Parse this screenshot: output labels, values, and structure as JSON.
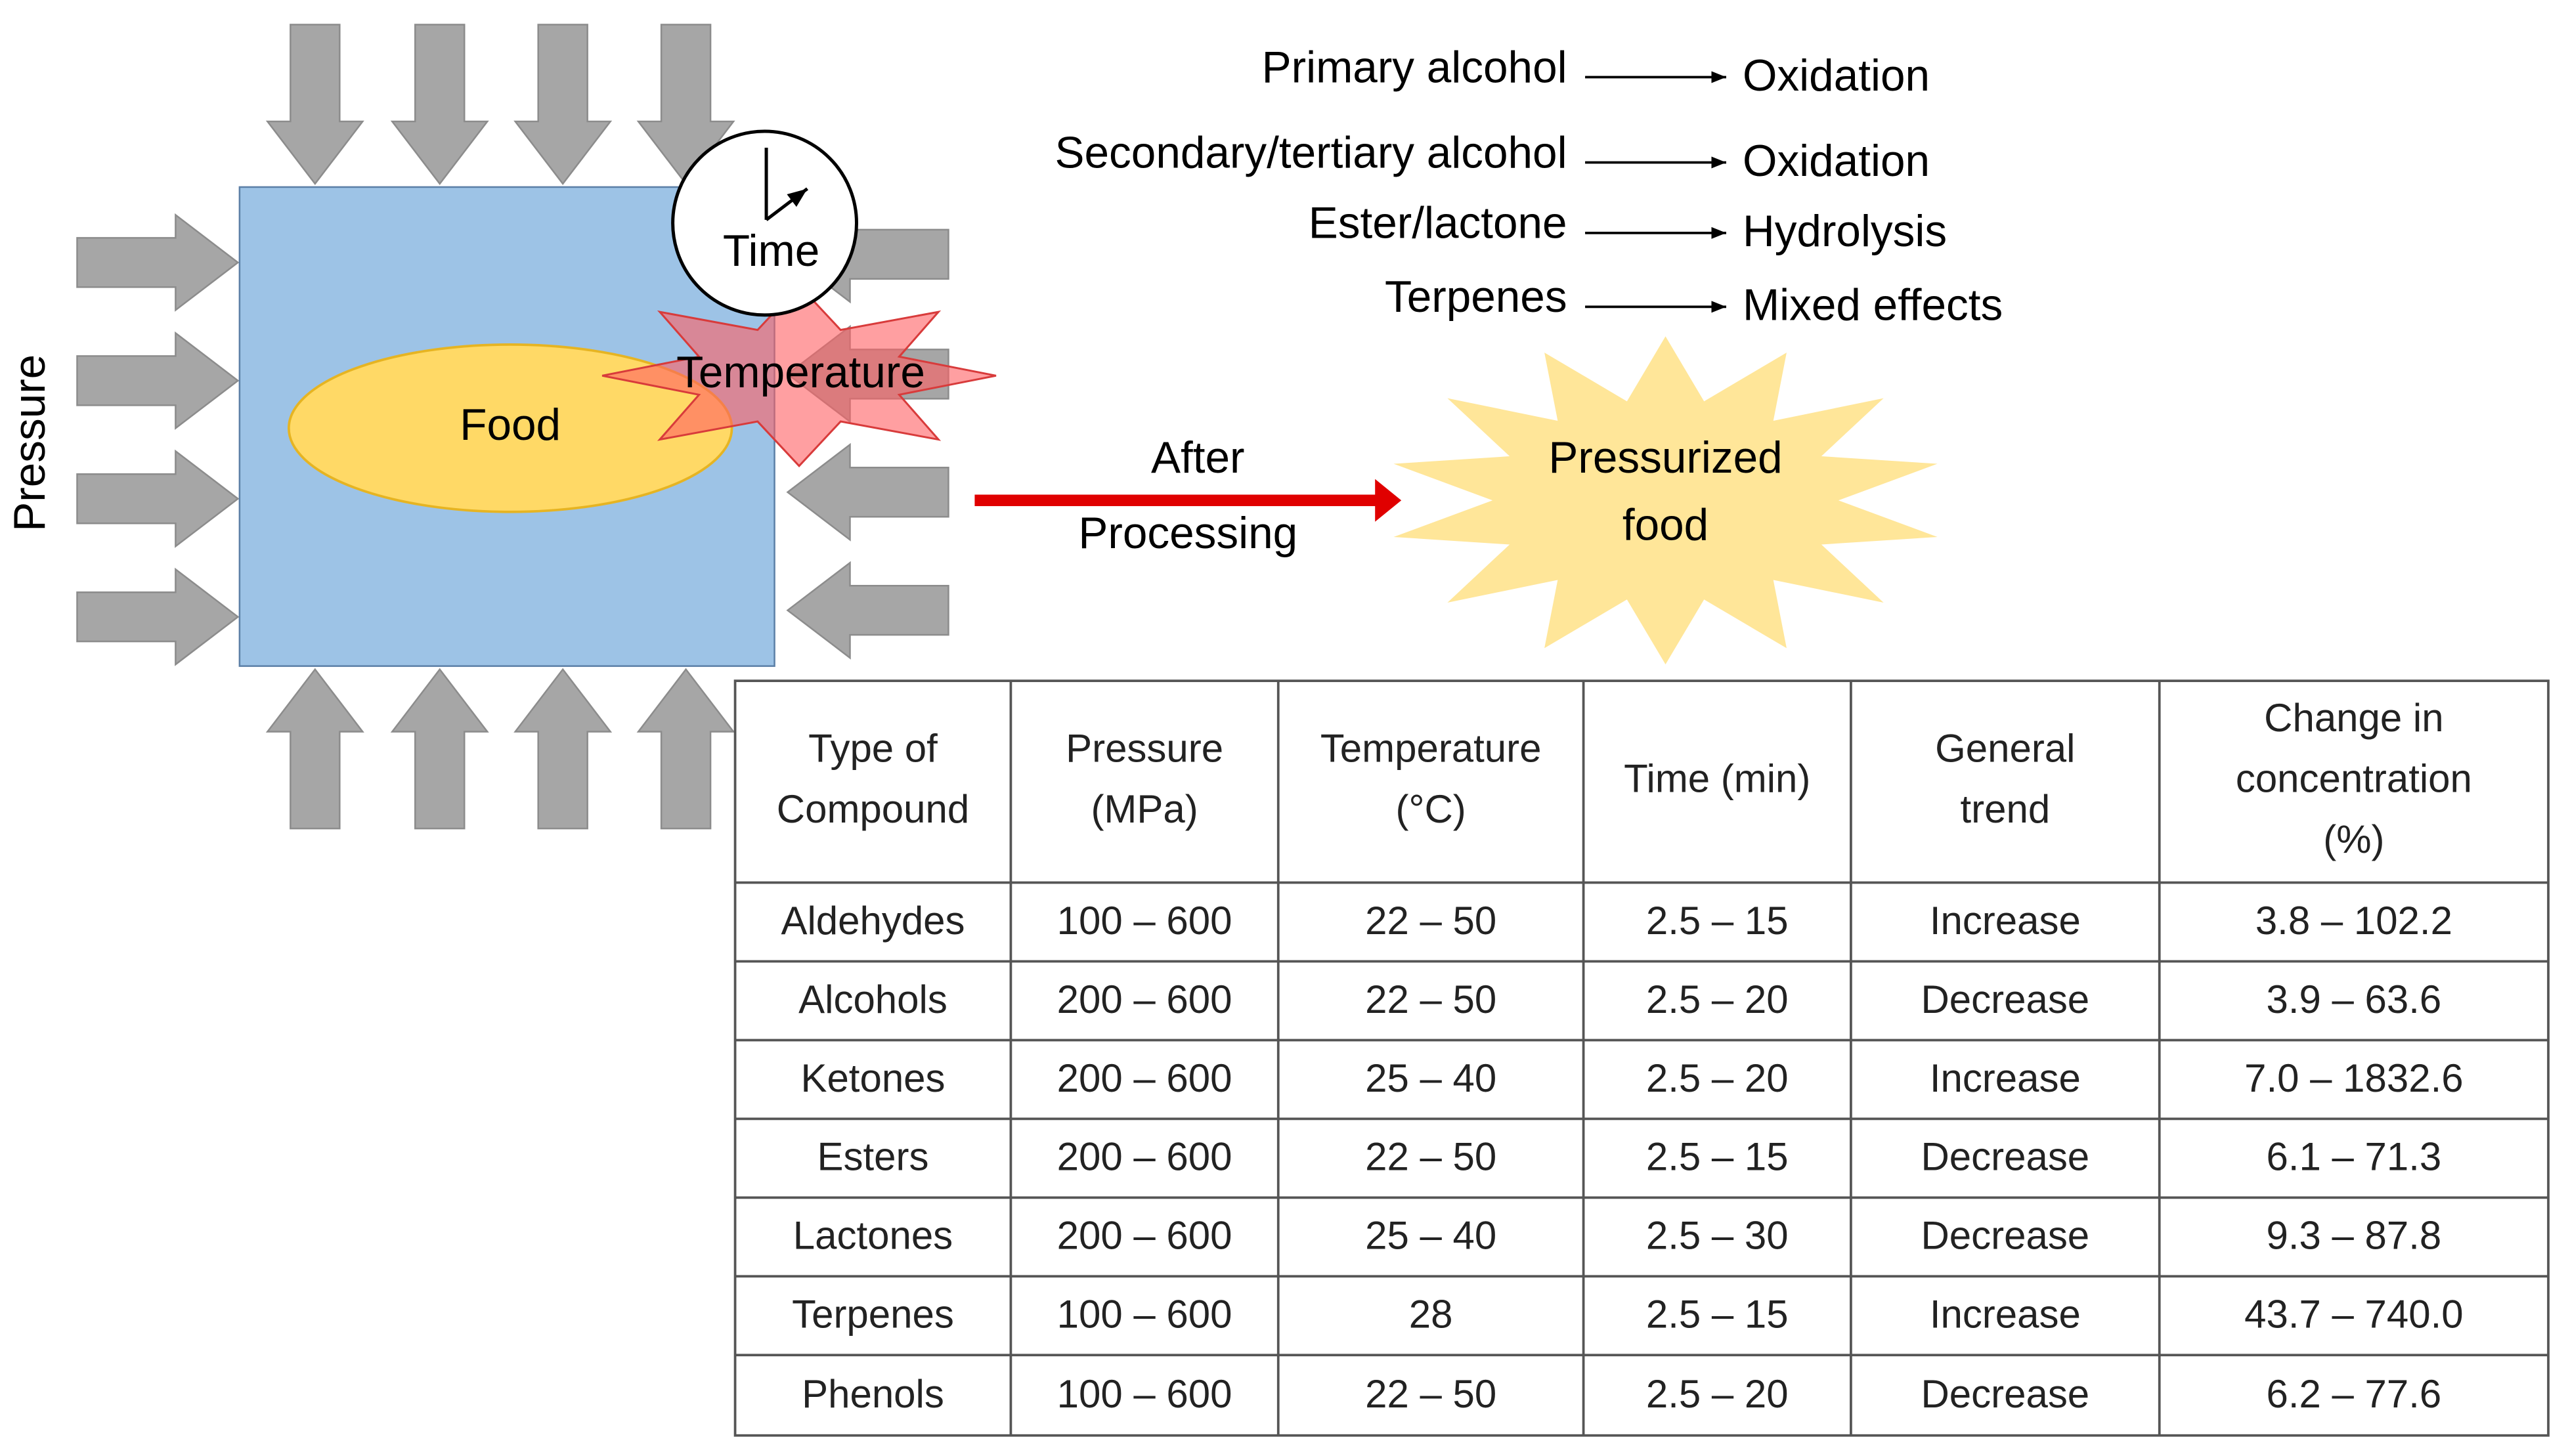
{
  "diagram": {
    "pressure_label": "Pressure",
    "food_label": "Food",
    "temperature_label": "Temperature",
    "time_label": "Time",
    "after_label": [
      "After",
      "Processing"
    ],
    "result_label": [
      "Pressurized",
      "food"
    ],
    "reactions": [
      {
        "compound": "Primary alcohol",
        "effect": "Oxidation"
      },
      {
        "compound": "Secondary/tertiary alcohol",
        "effect": "Oxidation"
      },
      {
        "compound": "Ester/lactone",
        "effect": "Hydrolysis"
      },
      {
        "compound": "Terpenes",
        "effect": "Mixed effects"
      }
    ]
  },
  "table": {
    "header": [
      [
        "Type of",
        "Compound"
      ],
      [
        "Pressure",
        "(MPa)"
      ],
      [
        "Temperature",
        "(°C)"
      ],
      [
        "Time (min)"
      ],
      [
        "General",
        "trend"
      ],
      [
        "Change in",
        "concentration",
        "(%)"
      ]
    ],
    "rows": [
      [
        "Aldehydes",
        "100 – 600",
        "22 – 50",
        "2.5 – 15",
        "Increase",
        "3.8 – 102.2"
      ],
      [
        "Alcohols",
        "200 – 600",
        "22 – 50",
        "2.5 – 20",
        "Decrease",
        "3.9 – 63.6"
      ],
      [
        "Ketones",
        "200 – 600",
        "25 – 40",
        "2.5 – 20",
        "Increase",
        "7.0 – 1832.6"
      ],
      [
        "Esters",
        "200 – 600",
        "22 – 50",
        "2.5 – 15",
        "Decrease",
        "6.1 – 71.3"
      ],
      [
        "Lactones",
        "200 – 600",
        "25 – 40",
        "2.5 – 30",
        "Decrease",
        "9.3 – 87.8"
      ],
      [
        "Terpenes",
        "100 – 600",
        "28",
        "2.5 – 15",
        "Increase",
        "43.7 – 740.0"
      ],
      [
        "Phenols",
        "100 – 600",
        "22 – 50",
        "2.5 – 20",
        "Decrease",
        "6.2 – 77.6"
      ]
    ]
  }
}
